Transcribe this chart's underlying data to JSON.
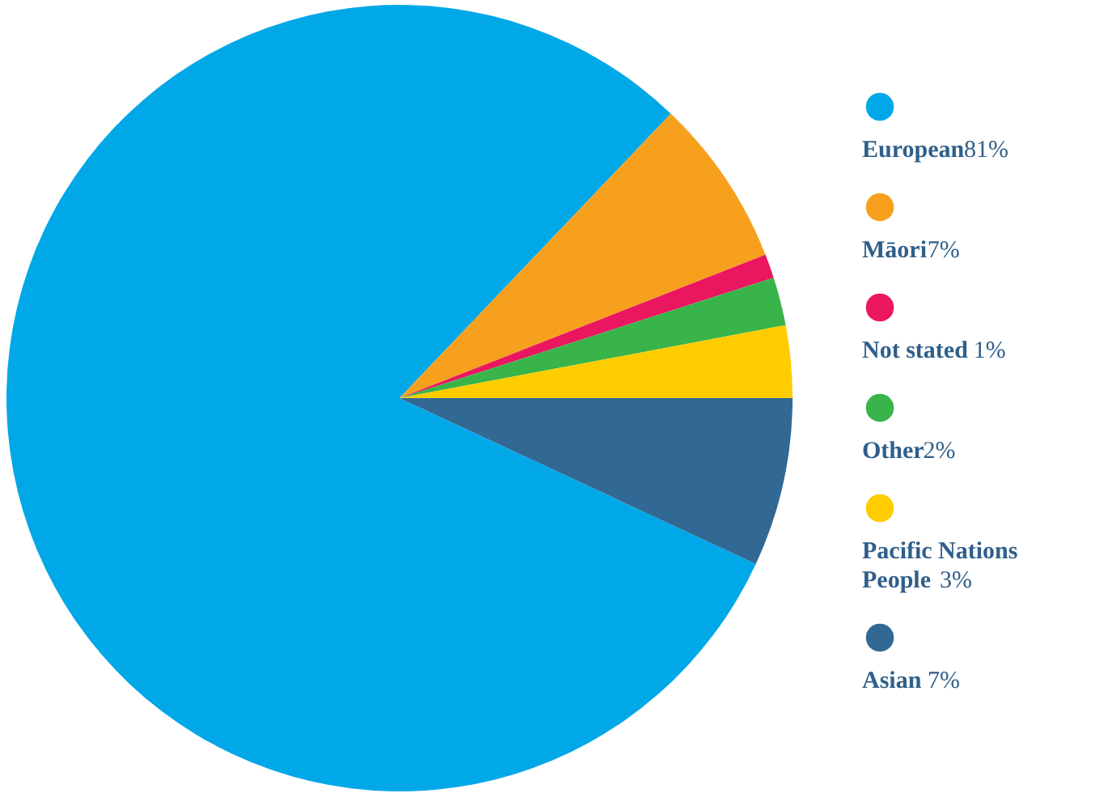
{
  "chart_data": {
    "type": "pie",
    "categories": [
      "European",
      "Māori",
      "Not stated",
      "Other",
      "Pacific Nations People",
      "Asian"
    ],
    "values": [
      81,
      7,
      1,
      2,
      3,
      7
    ],
    "value_labels": [
      "81%",
      "7%",
      "1%",
      "2%",
      "3%",
      "7%"
    ],
    "colors": [
      "#00a8e8",
      "#f7a01e",
      "#ea1660",
      "#38b44a",
      "#ffcc00",
      "#316894"
    ],
    "legend": "right"
  }
}
